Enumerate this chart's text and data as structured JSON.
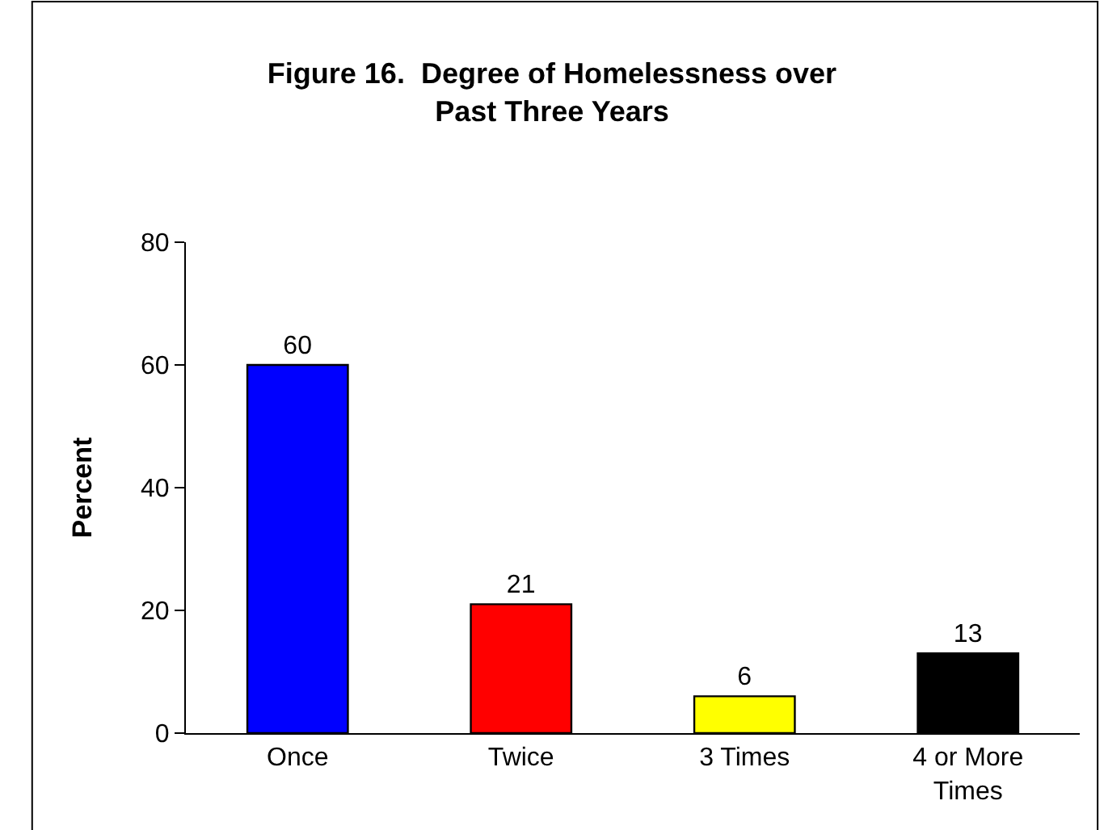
{
  "chart_data": {
    "type": "bar",
    "title": "Figure 16.  Degree of Homelessness over\nPast Three Years",
    "ylabel": "Percent",
    "categories": [
      "Once",
      "Twice",
      "3 Times",
      "4 or More Times"
    ],
    "values": [
      60,
      21,
      6,
      13
    ],
    "colors": [
      "#0000ff",
      "#ff0000",
      "#ffff00",
      "#000000"
    ],
    "ylim": [
      0,
      80
    ],
    "yticks": [
      0,
      20,
      40,
      60,
      80
    ],
    "grid": false,
    "data_labels": true
  }
}
